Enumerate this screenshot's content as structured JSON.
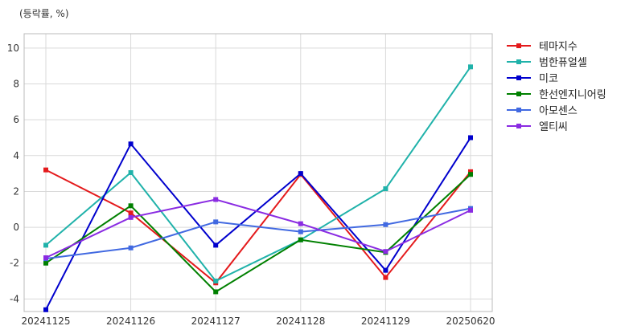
{
  "unit_label": "(등락률, %)",
  "chart_data": {
    "type": "line",
    "ylabel": "(등락률, %)",
    "xlabel": "",
    "categories": [
      "20241125",
      "20241126",
      "20241127",
      "20241128",
      "20241129",
      "20250620"
    ],
    "ylim": [
      -4.7,
      10.8
    ],
    "yticks": [
      -4,
      -2,
      0,
      2,
      4,
      6,
      8,
      10
    ],
    "grid": true,
    "legend_position": "outside-top-right",
    "series": [
      {
        "name": "테마지수",
        "color": "#e41a1c",
        "values": [
          3.2,
          0.8,
          -3.1,
          2.95,
          -2.8,
          3.1
        ]
      },
      {
        "name": "범한퓨얼셀",
        "color": "#20b2aa",
        "values": [
          -1.0,
          3.05,
          -3.0,
          -0.7,
          2.15,
          8.95
        ]
      },
      {
        "name": "미코",
        "color": "#0000cd",
        "values": [
          -4.6,
          4.65,
          -1.0,
          3.0,
          -2.4,
          5.0
        ]
      },
      {
        "name": "한선엔지니어링",
        "color": "#008000",
        "values": [
          -2.0,
          1.2,
          -3.6,
          -0.7,
          -1.4,
          2.95
        ]
      },
      {
        "name": "아모센스",
        "color": "#4169e1",
        "values": [
          -1.75,
          -1.15,
          0.3,
          -0.25,
          0.15,
          1.05
        ]
      },
      {
        "name": "엘티씨",
        "color": "#8a2be2",
        "values": [
          -1.7,
          0.55,
          1.55,
          0.2,
          -1.35,
          0.95
        ]
      }
    ]
  }
}
